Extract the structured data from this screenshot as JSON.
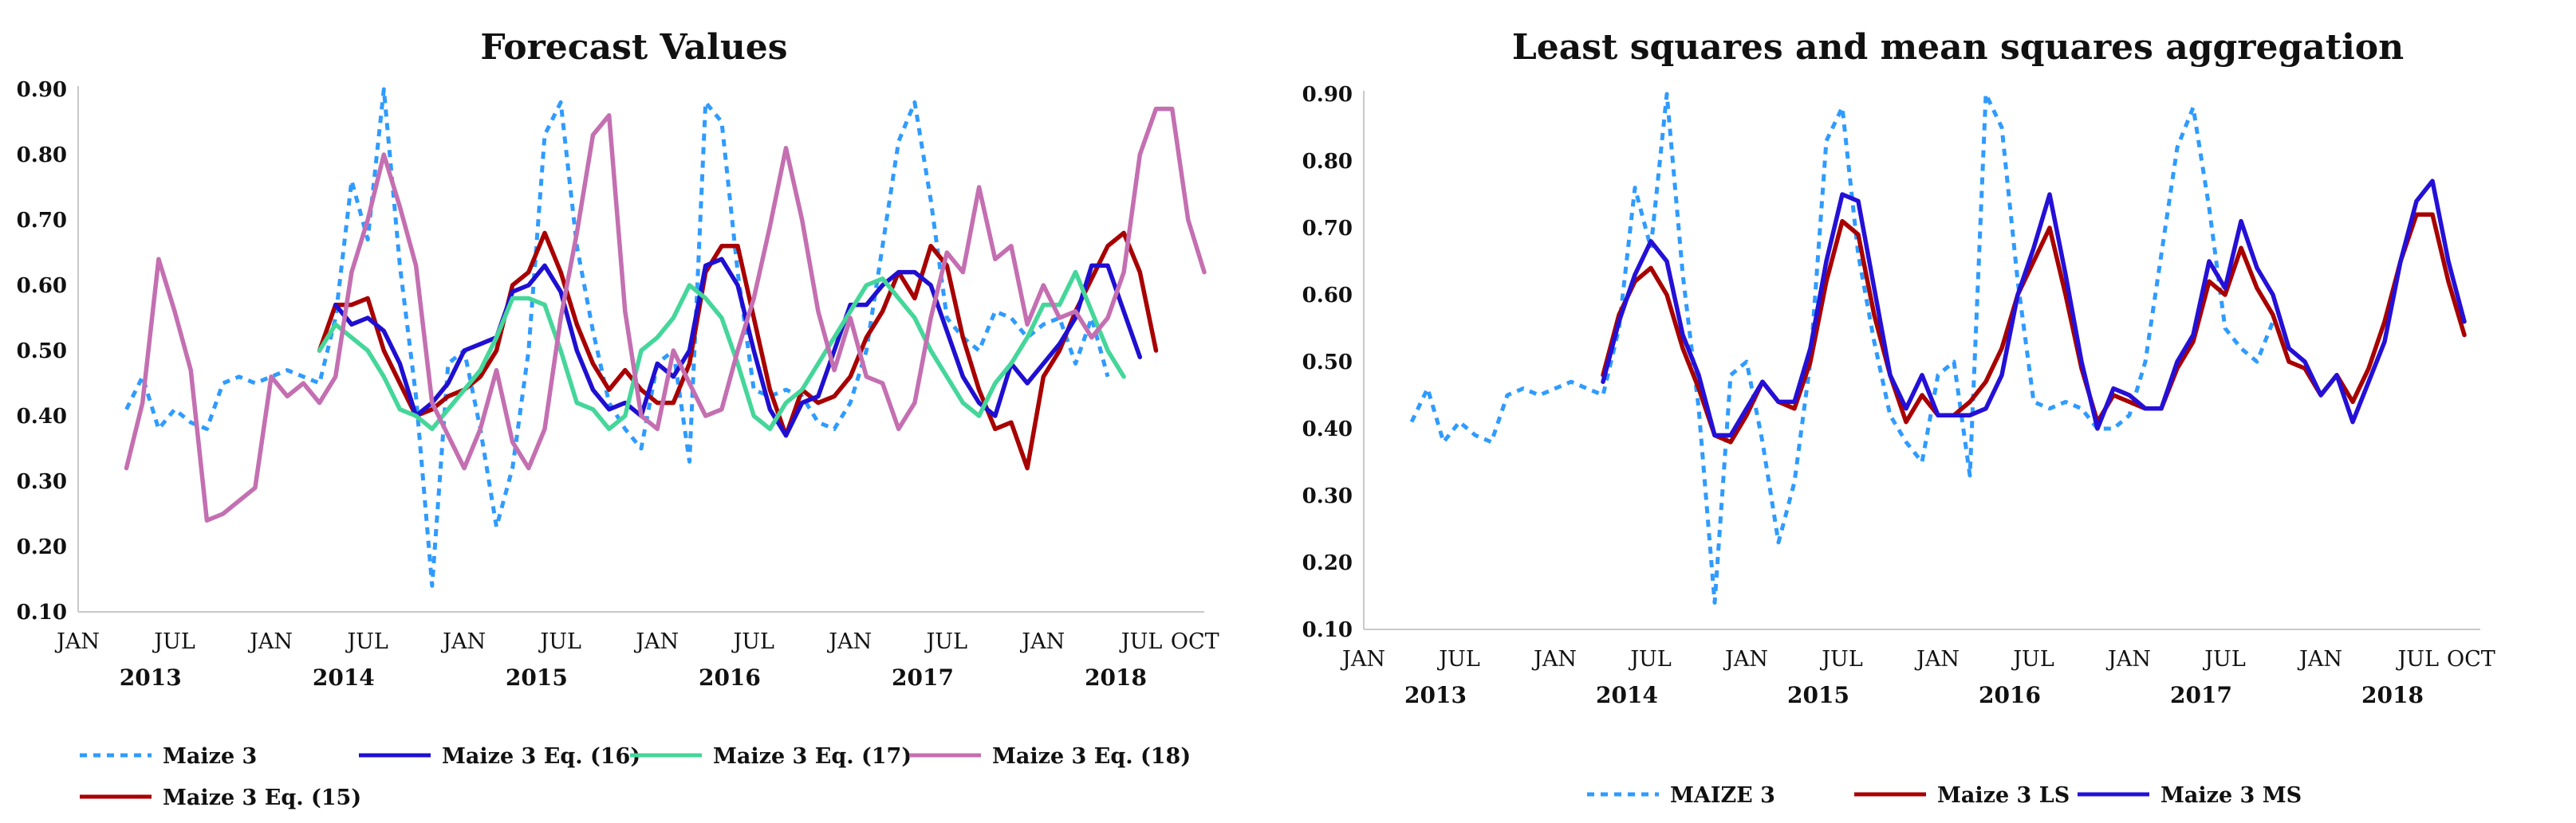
{
  "colors": {
    "maize": "#2f9bff",
    "eq15": "#a80000",
    "eq16": "#1f0fd1",
    "eq17": "#45d69a",
    "eq18": "#c46fb1",
    "ls": "#a80000",
    "ms": "#2410d6"
  },
  "chart_data": [
    {
      "type": "line",
      "title": "Forecast Values",
      "xlabel": "",
      "ylabel": "",
      "ylim": [
        0.1,
        0.9
      ],
      "yticks": [
        "0.10",
        "0.20",
        "0.30",
        "0.40",
        "0.50",
        "0.60",
        "0.70",
        "0.80",
        "0.90"
      ],
      "month_ticks": [
        {
          "label": "JAN",
          "t": 0
        },
        {
          "label": "JUL",
          "t": 6
        },
        {
          "label": "JAN",
          "t": 12
        },
        {
          "label": "JUL",
          "t": 18
        },
        {
          "label": "JAN",
          "t": 24
        },
        {
          "label": "JUL",
          "t": 30
        },
        {
          "label": "JAN",
          "t": 36
        },
        {
          "label": "JUL",
          "t": 42
        },
        {
          "label": "JAN",
          "t": 48
        },
        {
          "label": "JUL",
          "t": 54
        },
        {
          "label": "JAN",
          "t": 60
        },
        {
          "label": "JUL",
          "t": 66
        },
        {
          "label": "OCT",
          "t": 69
        }
      ],
      "year_ticks": [
        {
          "label": "2013",
          "t": 4.5
        },
        {
          "label": "2014",
          "t": 16.5
        },
        {
          "label": "2015",
          "t": 28.5
        },
        {
          "label": "2016",
          "t": 40.5
        },
        {
          "label": "2017",
          "t": 52.5
        },
        {
          "label": "2018",
          "t": 64.5
        }
      ],
      "x_range": [
        0,
        70
      ],
      "series": [
        {
          "name": "Maize 3",
          "color_key": "maize",
          "dashed": true,
          "t_start": 3,
          "values": [
            0.41,
            0.46,
            0.38,
            0.41,
            0.39,
            0.38,
            0.45,
            0.46,
            0.45,
            0.46,
            0.47,
            0.46,
            0.45,
            0.55,
            0.76,
            0.67,
            0.9,
            0.63,
            0.43,
            0.14,
            0.48,
            0.5,
            0.38,
            0.23,
            0.32,
            0.5,
            0.83,
            0.88,
            0.66,
            0.53,
            0.42,
            0.38,
            0.35,
            0.48,
            0.5,
            0.33,
            0.88,
            0.85,
            0.62,
            0.44,
            0.43,
            0.44,
            0.43,
            0.39,
            0.38,
            0.42,
            0.5,
            0.66,
            0.82,
            0.88,
            0.73,
            0.55,
            0.52,
            0.5,
            0.56,
            0.55,
            0.52,
            0.54,
            0.55,
            0.48,
            0.55,
            0.46
          ]
        },
        {
          "name": "Maize 3 Eq. (15)",
          "color_key": "eq15",
          "dashed": false,
          "t_start": 15,
          "values": [
            0.5,
            0.57,
            0.57,
            0.58,
            0.5,
            0.45,
            0.4,
            0.41,
            0.43,
            0.44,
            0.46,
            0.5,
            0.6,
            0.62,
            0.68,
            0.62,
            0.54,
            0.48,
            0.44,
            0.47,
            0.44,
            0.42,
            0.42,
            0.48,
            0.62,
            0.66,
            0.66,
            0.55,
            0.44,
            0.37,
            0.44,
            0.42,
            0.43,
            0.46,
            0.52,
            0.56,
            0.62,
            0.58,
            0.66,
            0.63,
            0.52,
            0.44,
            0.38,
            0.39,
            0.32,
            0.46,
            0.5,
            0.56,
            0.61,
            0.66,
            0.68,
            0.62,
            0.5
          ]
        },
        {
          "name": "Maize 3 Eq. (16)",
          "color_key": "eq16",
          "dashed": false,
          "t_start": 16,
          "values": [
            0.57,
            0.54,
            0.55,
            0.53,
            0.48,
            0.4,
            0.42,
            0.45,
            0.5,
            0.51,
            0.52,
            0.59,
            0.6,
            0.63,
            0.59,
            0.5,
            0.44,
            0.41,
            0.42,
            0.4,
            0.48,
            0.46,
            0.5,
            0.63,
            0.64,
            0.6,
            0.5,
            0.41,
            0.37,
            0.42,
            0.43,
            0.5,
            0.57,
            0.57,
            0.6,
            0.62,
            0.62,
            0.6,
            0.53,
            0.46,
            0.42,
            0.4,
            0.48,
            0.45,
            0.48,
            0.51,
            0.55,
            0.63,
            0.63,
            0.56,
            0.49
          ]
        },
        {
          "name": "Maize 3 Eq. (17)",
          "color_key": "eq17",
          "dashed": false,
          "t_start": 15,
          "values": [
            0.5,
            0.54,
            0.52,
            0.5,
            0.46,
            0.41,
            0.4,
            0.38,
            0.41,
            0.44,
            0.47,
            0.52,
            0.58,
            0.58,
            0.57,
            0.5,
            0.42,
            0.41,
            0.38,
            0.4,
            0.5,
            0.52,
            0.55,
            0.6,
            0.58,
            0.55,
            0.48,
            0.4,
            0.38,
            0.42,
            0.44,
            0.48,
            0.52,
            0.56,
            0.6,
            0.61,
            0.58,
            0.55,
            0.5,
            0.46,
            0.42,
            0.4,
            0.45,
            0.48,
            0.52,
            0.57,
            0.57,
            0.62,
            0.56,
            0.5,
            0.46
          ]
        },
        {
          "name": "Maize 3 Eq. (18)",
          "color_key": "eq18",
          "dashed": false,
          "t_start": 3,
          "values": [
            0.32,
            0.42,
            0.64,
            0.56,
            0.47,
            0.24,
            0.25,
            0.27,
            0.29,
            0.46,
            0.43,
            0.45,
            0.42,
            0.46,
            0.62,
            0.7,
            0.8,
            0.72,
            0.63,
            0.42,
            0.37,
            0.32,
            0.38,
            0.47,
            0.36,
            0.32,
            0.38,
            0.55,
            0.68,
            0.83,
            0.86,
            0.56,
            0.4,
            0.38,
            0.5,
            0.45,
            0.4,
            0.41,
            0.5,
            0.58,
            0.69,
            0.81,
            0.7,
            0.56,
            0.47,
            0.55,
            0.46,
            0.45,
            0.38,
            0.42,
            0.55,
            0.65,
            0.62,
            0.75,
            0.64,
            0.66,
            0.54,
            0.6,
            0.55,
            0.56,
            0.52,
            0.55,
            0.62,
            0.8,
            0.87,
            0.87,
            0.7,
            0.62
          ]
        }
      ],
      "legend": [
        {
          "label": "Maize 3",
          "color_key": "maize",
          "dashed": true
        },
        {
          "label": "Maize 3 Eq. (16)",
          "color_key": "eq16",
          "dashed": false
        },
        {
          "label": "Maize 3 Eq. (17)",
          "color_key": "eq17",
          "dashed": false
        },
        {
          "label": "Maize 3 Eq. (18)",
          "color_key": "eq18",
          "dashed": false
        },
        {
          "label": "Maize 3 Eq. (15)",
          "color_key": "eq15",
          "dashed": false
        }
      ],
      "legend_position": "bottom"
    },
    {
      "type": "line",
      "title": "Least squares and mean squares aggregation",
      "xlabel": "",
      "ylabel": "",
      "ylim": [
        0.1,
        0.9
      ],
      "yticks": [
        "0.10",
        "0.20",
        "0.30",
        "0.40",
        "0.50",
        "0.60",
        "0.70",
        "0.80",
        "0.90"
      ],
      "month_ticks": [
        {
          "label": "JAN",
          "t": 0
        },
        {
          "label": "JUL",
          "t": 6
        },
        {
          "label": "JAN",
          "t": 12
        },
        {
          "label": "JUL",
          "t": 18
        },
        {
          "label": "JAN",
          "t": 24
        },
        {
          "label": "JUL",
          "t": 30
        },
        {
          "label": "JAN",
          "t": 36
        },
        {
          "label": "JUL",
          "t": 42
        },
        {
          "label": "JAN",
          "t": 48
        },
        {
          "label": "JUL",
          "t": 54
        },
        {
          "label": "JAN",
          "t": 60
        },
        {
          "label": "JUL",
          "t": 66
        },
        {
          "label": "OCT",
          "t": 69
        }
      ],
      "year_ticks": [
        {
          "label": "2013",
          "t": 4.5
        },
        {
          "label": "2014",
          "t": 16.5
        },
        {
          "label": "2015",
          "t": 28.5
        },
        {
          "label": "2016",
          "t": 40.5
        },
        {
          "label": "2017",
          "t": 52.5
        },
        {
          "label": "2018",
          "t": 64.5
        }
      ],
      "x_range": [
        0,
        70
      ],
      "series": [
        {
          "name": "MAIZE 3",
          "color_key": "maize",
          "dashed": true,
          "t_start": 3,
          "values": [
            0.41,
            0.46,
            0.38,
            0.41,
            0.39,
            0.38,
            0.45,
            0.46,
            0.45,
            0.46,
            0.47,
            0.46,
            0.45,
            0.55,
            0.76,
            0.67,
            0.9,
            0.63,
            0.43,
            0.14,
            0.48,
            0.5,
            0.38,
            0.23,
            0.32,
            0.5,
            0.83,
            0.88,
            0.66,
            0.53,
            0.42,
            0.38,
            0.35,
            0.48,
            0.5,
            0.33,
            0.9,
            0.85,
            0.62,
            0.44,
            0.43,
            0.44,
            0.43,
            0.4,
            0.4,
            0.42,
            0.5,
            0.66,
            0.82,
            0.88,
            0.73,
            0.55,
            0.52,
            0.5,
            0.56
          ]
        },
        {
          "name": "Maize 3 LS",
          "color_key": "ls",
          "dashed": false,
          "t_start": 15,
          "values": [
            0.48,
            0.57,
            0.62,
            0.64,
            0.6,
            0.52,
            0.46,
            0.39,
            0.38,
            0.42,
            0.47,
            0.44,
            0.43,
            0.5,
            0.62,
            0.71,
            0.69,
            0.57,
            0.48,
            0.41,
            0.45,
            0.42,
            0.42,
            0.44,
            0.47,
            0.52,
            0.6,
            0.65,
            0.7,
            0.6,
            0.49,
            0.41,
            0.45,
            0.44,
            0.43,
            0.43,
            0.49,
            0.53,
            0.62,
            0.6,
            0.67,
            0.61,
            0.57,
            0.5,
            0.49,
            0.45,
            0.48,
            0.44,
            0.49,
            0.56,
            0.65,
            0.72,
            0.72,
            0.62,
            0.54
          ]
        },
        {
          "name": "Maize 3 MS",
          "color_key": "ms",
          "dashed": false,
          "t_start": 15,
          "values": [
            0.47,
            0.56,
            0.63,
            0.68,
            0.65,
            0.54,
            0.48,
            0.39,
            0.39,
            0.43,
            0.47,
            0.44,
            0.44,
            0.52,
            0.65,
            0.75,
            0.74,
            0.61,
            0.48,
            0.43,
            0.48,
            0.42,
            0.42,
            0.42,
            0.43,
            0.48,
            0.6,
            0.67,
            0.75,
            0.63,
            0.5,
            0.4,
            0.46,
            0.45,
            0.43,
            0.43,
            0.5,
            0.54,
            0.65,
            0.61,
            0.71,
            0.64,
            0.6,
            0.52,
            0.5,
            0.45,
            0.48,
            0.41,
            0.47,
            0.53,
            0.65,
            0.74,
            0.77,
            0.65,
            0.56
          ]
        }
      ],
      "legend": [
        {
          "label": "MAIZE 3",
          "color_key": "maize",
          "dashed": true
        },
        {
          "label": "Maize 3 LS",
          "color_key": "ls",
          "dashed": false
        },
        {
          "label": "Maize 3 MS",
          "color_key": "ms",
          "dashed": false
        }
      ],
      "legend_position": "bottom"
    }
  ]
}
